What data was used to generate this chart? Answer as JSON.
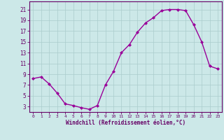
{
  "x": [
    0,
    1,
    2,
    3,
    4,
    5,
    6,
    7,
    8,
    9,
    10,
    11,
    12,
    13,
    14,
    15,
    16,
    17,
    18,
    19,
    20,
    21,
    22,
    23
  ],
  "y": [
    8.2,
    8.5,
    7.2,
    5.5,
    3.5,
    3.2,
    2.8,
    2.5,
    3.2,
    7.0,
    9.5,
    13.0,
    14.5,
    16.8,
    18.5,
    19.5,
    20.8,
    21.0,
    21.0,
    20.8,
    18.2,
    15.0,
    10.5,
    10.0
  ],
  "line_color": "#990099",
  "marker": "D",
  "marker_size": 2,
  "bg_color": "#cce8e8",
  "grid_color": "#aacccc",
  "xlabel": "Windchill (Refroidissement éolien,°C)",
  "ylabel_ticks": [
    3,
    5,
    7,
    9,
    11,
    13,
    15,
    17,
    19,
    21
  ],
  "xlim": [
    -0.5,
    23.5
  ],
  "ylim": [
    2.0,
    22.5
  ],
  "xtick_labels": [
    "0",
    "1",
    "2",
    "3",
    "4",
    "5",
    "6",
    "7",
    "8",
    "9",
    "10",
    "11",
    "12",
    "13",
    "14",
    "15",
    "16",
    "17",
    "18",
    "19",
    "20",
    "21",
    "22",
    "23"
  ],
  "axis_color": "#660066",
  "tick_color": "#660066",
  "font_color": "#660066",
  "linewidth": 1.0
}
